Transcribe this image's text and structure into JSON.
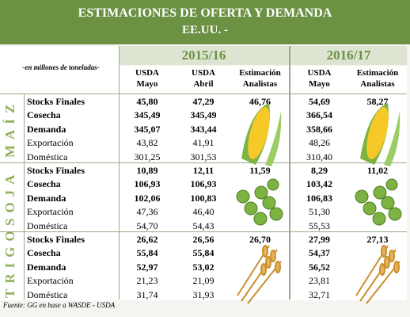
{
  "header": {
    "title": "ESTIMACIONES DE OFERTA Y DEMANDA",
    "subtitle": "EE.UU. -"
  },
  "unit_note": "-en millones de toneladas-",
  "years": [
    "2015/16",
    "2016/17"
  ],
  "columns": [
    [
      "USDA",
      "Mayo"
    ],
    [
      "USDA",
      "Abril"
    ],
    [
      "Estimación",
      "Analistas"
    ],
    [
      "USDA",
      "Mayo"
    ],
    [
      "Estimación",
      "Analistas"
    ]
  ],
  "sections": [
    {
      "name": "MAÍZ",
      "rows": [
        {
          "label": "Stocks Finales",
          "values": [
            "45,80",
            "47,29",
            "46,76",
            "54,69",
            "58,27"
          ]
        },
        {
          "label": "Cosecha",
          "values": [
            "345,49",
            "345,49",
            null,
            "366,54",
            null
          ]
        },
        {
          "label": "Demanda",
          "values": [
            "345,07",
            "343,44",
            null,
            "358,66",
            null
          ]
        },
        {
          "label": "Exportación",
          "values": [
            "43,82",
            "41,91",
            null,
            "48,26",
            null
          ]
        },
        {
          "label": "Doméstica",
          "values": [
            "301,25",
            "301,53",
            null,
            "310,40",
            null
          ]
        }
      ]
    },
    {
      "name": "SOJA",
      "rows": [
        {
          "label": "Stocks Finales",
          "values": [
            "10,89",
            "12,11",
            "11,59",
            "8,29",
            "11,02"
          ]
        },
        {
          "label": "Cosecha",
          "values": [
            "106,93",
            "106,93",
            null,
            "103,42",
            null
          ]
        },
        {
          "label": "Demanda",
          "values": [
            "102,06",
            "100,83",
            null,
            "106,83",
            null
          ]
        },
        {
          "label": "Exportación",
          "values": [
            "47,36",
            "46,40",
            null,
            "51,30",
            null
          ]
        },
        {
          "label": "Doméstica",
          "values": [
            "54,70",
            "54,43",
            null,
            "55,53",
            null
          ]
        }
      ]
    },
    {
      "name": "TRIGO",
      "rows": [
        {
          "label": "Stocks Finales",
          "values": [
            "26,62",
            "26,56",
            "26,70",
            "27,99",
            "27,13"
          ]
        },
        {
          "label": "Cosecha",
          "values": [
            "55,84",
            "55,84",
            null,
            "54,37",
            null
          ]
        },
        {
          "label": "Demanda",
          "values": [
            "52,97",
            "53,02",
            null,
            "56,52",
            null
          ]
        },
        {
          "label": "Exportación",
          "values": [
            "21,23",
            "21,09",
            null,
            "23,81",
            null
          ]
        },
        {
          "label": "Doméstica",
          "values": [
            "31,74",
            "31,93",
            null,
            "32,71",
            null
          ]
        }
      ]
    }
  ],
  "footer": "Fuente: GG en base a WASDE - USDA"
}
